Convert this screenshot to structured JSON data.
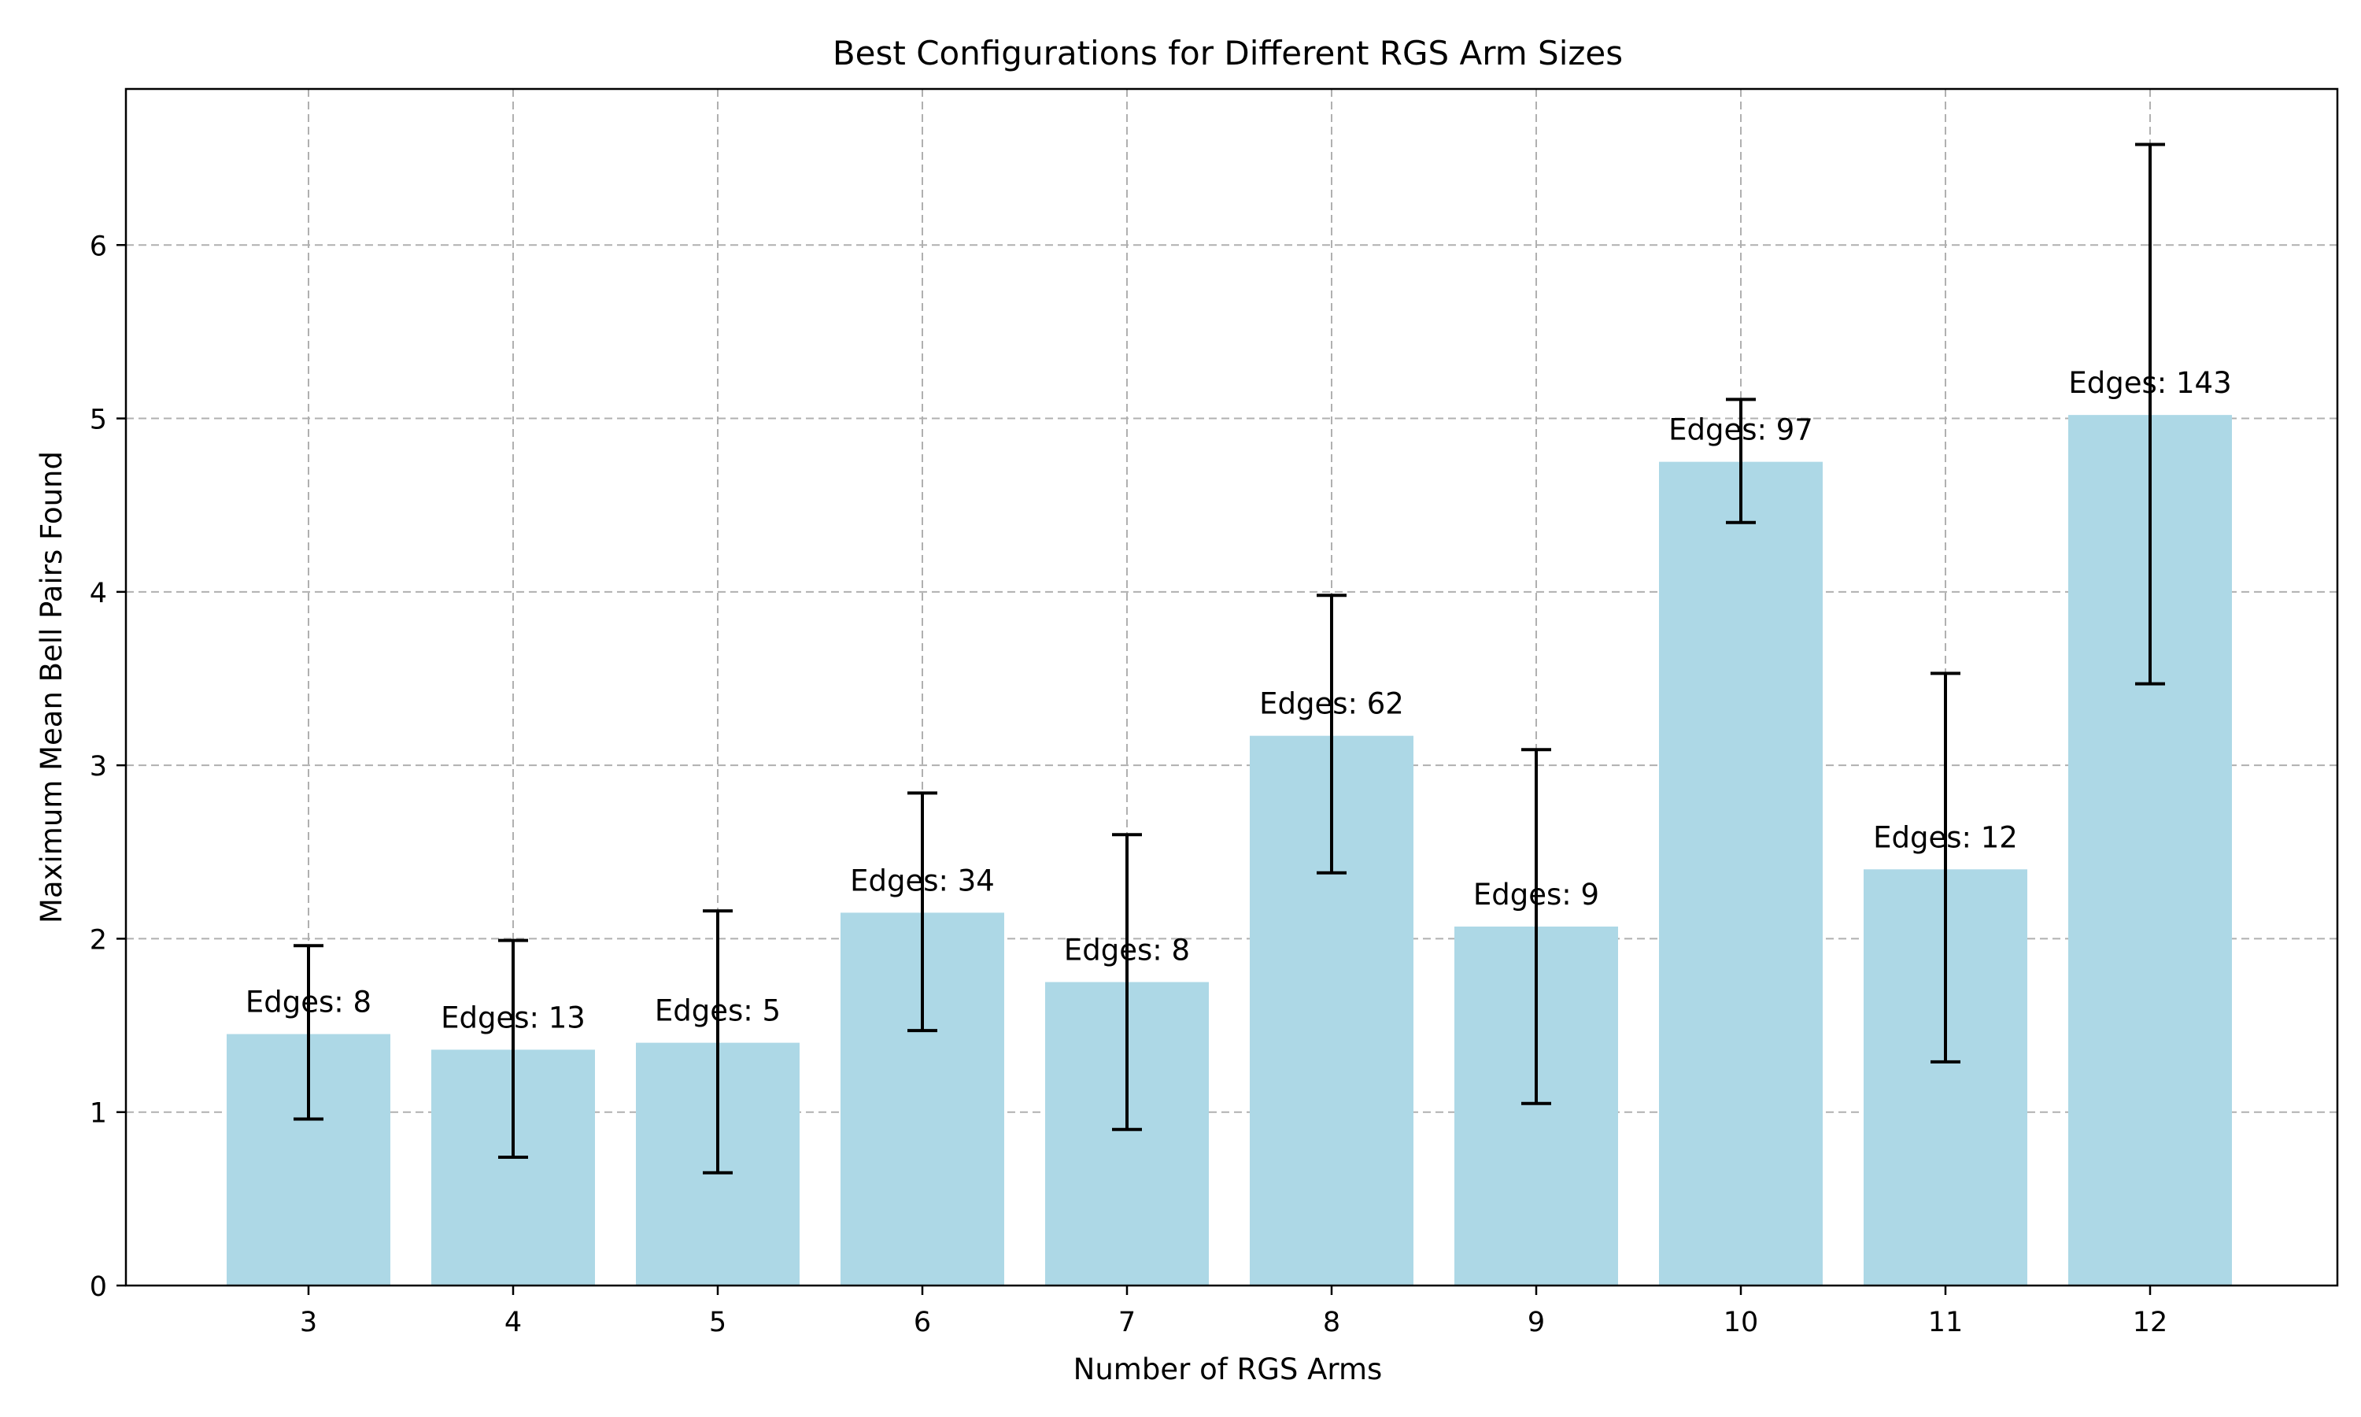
{
  "chart_data": {
    "type": "bar",
    "title": "Best Configurations for Different RGS Arm Sizes",
    "xlabel": "Number of RGS Arms",
    "ylabel": "Maximum Mean Bell Pairs Found",
    "categories": [
      "3",
      "4",
      "5",
      "6",
      "7",
      "8",
      "9",
      "10",
      "11",
      "12"
    ],
    "values": [
      1.45,
      1.36,
      1.4,
      2.15,
      1.75,
      3.17,
      2.07,
      4.75,
      2.4,
      5.02
    ],
    "error_low": [
      0.96,
      0.74,
      0.65,
      1.47,
      0.9,
      2.38,
      1.05,
      4.4,
      1.29,
      3.47
    ],
    "error_high": [
      1.96,
      1.99,
      2.16,
      2.84,
      2.6,
      3.98,
      3.09,
      5.11,
      3.53,
      6.58
    ],
    "annotations": [
      "Edges: 8",
      "Edges: 13",
      "Edges: 5",
      "Edges: 34",
      "Edges: 8",
      "Edges: 62",
      "Edges: 9",
      "Edges: 97",
      "Edges: 12",
      "Edges: 143"
    ],
    "yticks": [
      "0",
      "1",
      "2",
      "3",
      "4",
      "5",
      "6"
    ],
    "ylim": [
      0,
      6.9
    ],
    "grid": true,
    "colors": {
      "bar": "#add8e6",
      "error_bar": "#000000",
      "grid": "#b0b0b0"
    }
  }
}
